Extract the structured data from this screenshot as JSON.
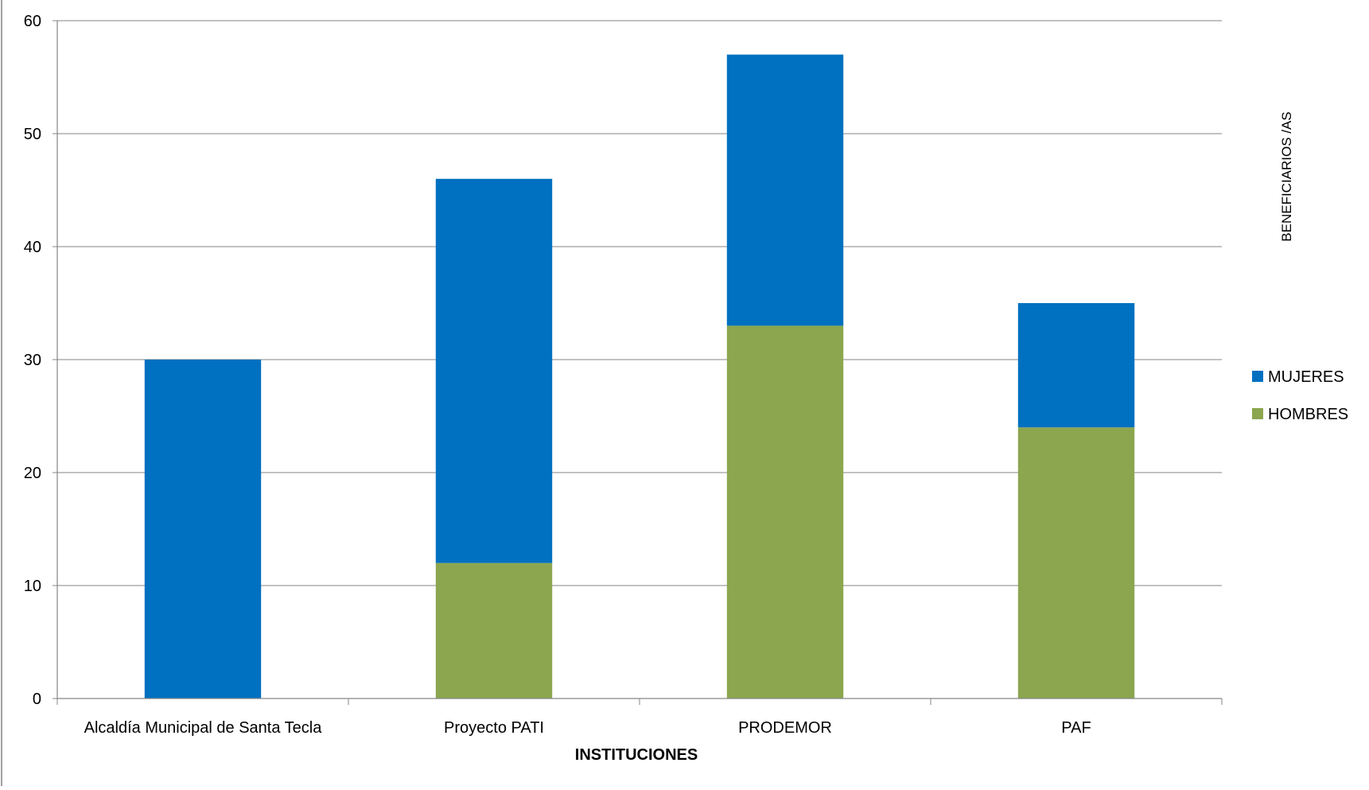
{
  "chart_data": {
    "type": "bar",
    "stacked": true,
    "categories": [
      "Alcaldía Municipal de Santa Tecla",
      "Proyecto PATI",
      "PRODEMOR",
      "PAF"
    ],
    "series": [
      {
        "name": "HOMBRES",
        "color": "#8BA64E",
        "values": [
          0,
          12,
          33,
          24
        ]
      },
      {
        "name": "MUJERES",
        "color": "#0070C0",
        "values": [
          30,
          34,
          24,
          11
        ]
      }
    ],
    "title": "",
    "xlabel": "INSTITUCIONES",
    "ylabel": "BENEFICIARIOS /AS",
    "ylim": [
      0,
      60
    ],
    "yticks": [
      "0",
      "10",
      "20",
      "30",
      "40",
      "50",
      "60"
    ],
    "grid": true,
    "legend": {
      "position": "right",
      "items": [
        {
          "name": "MUJERES",
          "color": "#0070C0"
        },
        {
          "name": "HOMBRES",
          "color": "#8BA64E"
        }
      ]
    }
  }
}
